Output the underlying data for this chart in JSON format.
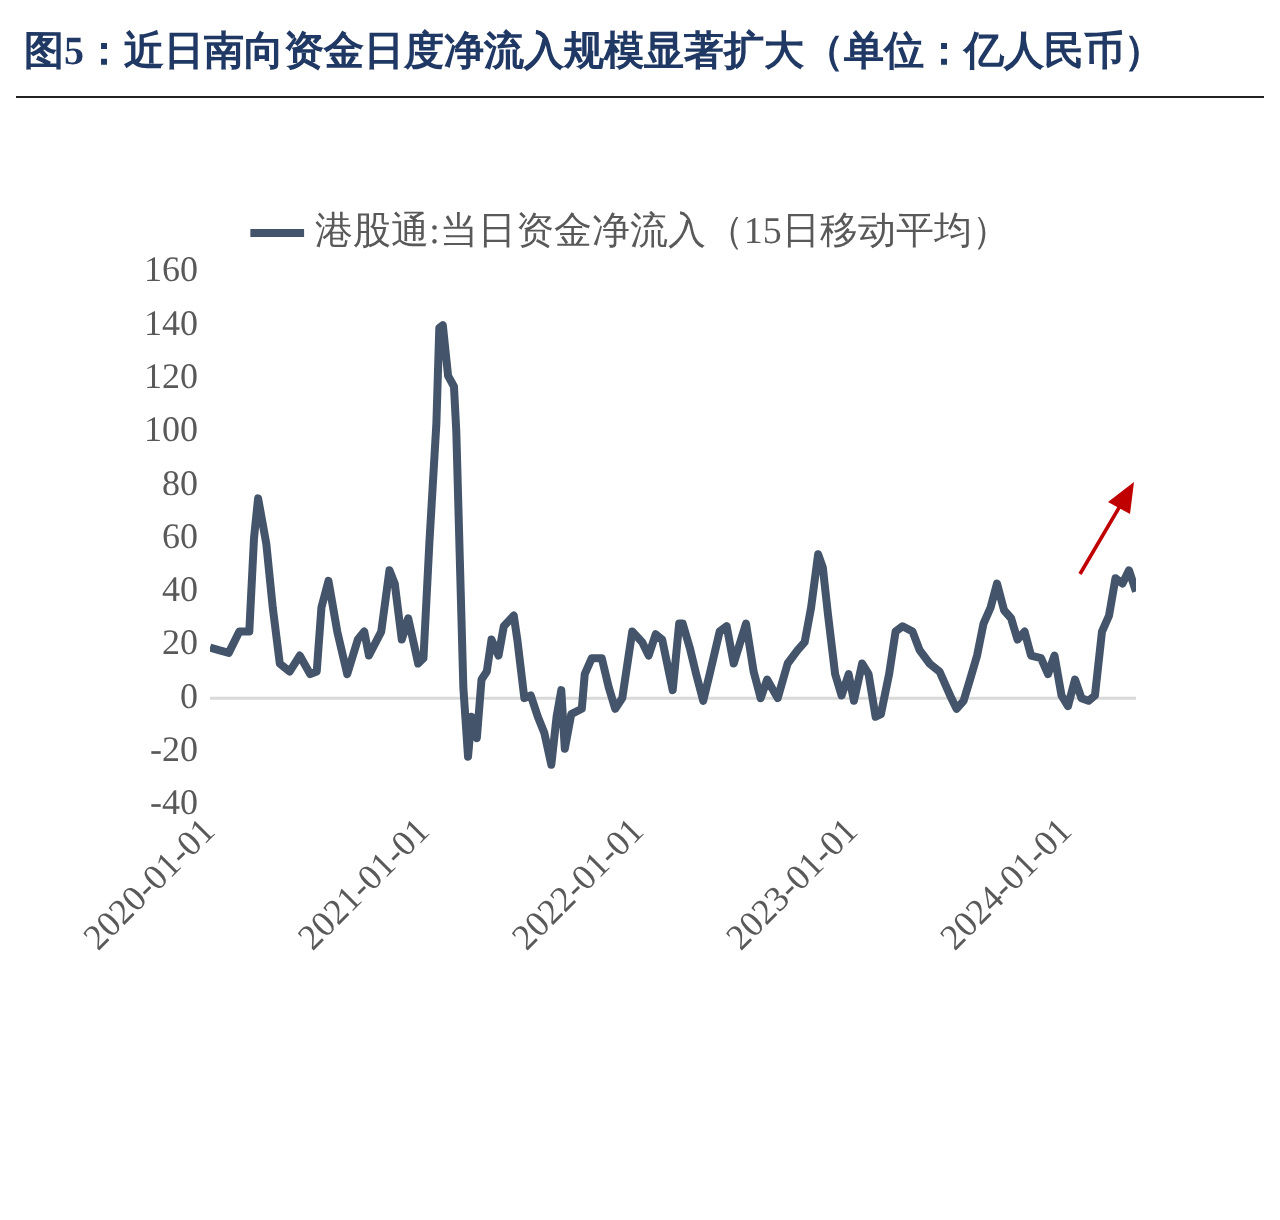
{
  "chart_data": {
    "type": "line",
    "title": "图5：近日南向资金日度净流入规模显著扩大（单位：亿人民币）",
    "x": [
      "2020-01-01",
      "2020-01-16",
      "2020-02-02",
      "2020-02-20",
      "2020-03-08",
      "2020-03-16",
      "2020-03-23",
      "2020-04-06",
      "2020-04-17",
      "2020-04-29",
      "2020-05-16",
      "2020-06-02",
      "2020-06-20",
      "2020-07-01",
      "2020-07-09",
      "2020-07-21",
      "2020-08-05",
      "2020-08-22",
      "2020-09-09",
      "2020-09-20",
      "2020-09-28",
      "2020-10-19",
      "2020-11-02",
      "2020-11-11",
      "2020-11-23",
      "2020-12-04",
      "2020-12-21",
      "2020-12-30",
      "2021-01-09",
      "2021-01-21",
      "2021-01-26",
      "2021-02-01",
      "2021-02-10",
      "2021-02-20",
      "2021-02-24",
      "2021-03-02",
      "2021-03-08",
      "2021-03-16",
      "2021-03-22",
      "2021-03-31",
      "2021-04-08",
      "2021-04-17",
      "2021-04-25",
      "2021-05-07",
      "2021-05-16",
      "2021-06-02",
      "2021-06-08",
      "2021-06-20",
      "2021-07-01",
      "2021-07-13",
      "2021-07-24",
      "2021-08-05",
      "2021-08-14",
      "2021-08-22",
      "2021-08-28",
      "2021-09-08",
      "2021-09-26",
      "2021-10-01",
      "2021-10-13",
      "2021-10-30",
      "2021-11-11",
      "2021-11-22",
      "2021-12-04",
      "2021-12-21",
      "2022-01-07",
      "2022-01-18",
      "2022-01-30",
      "2022-02-10",
      "2022-02-28",
      "2022-03-11",
      "2022-03-17",
      "2022-03-29",
      "2022-04-09",
      "2022-04-21",
      "2022-05-02",
      "2022-05-19",
      "2022-05-31",
      "2022-06-12",
      "2022-07-03",
      "2022-07-16",
      "2022-07-28",
      "2022-08-08",
      "2022-08-26",
      "2022-09-12",
      "2022-09-29",
      "2022-10-11",
      "2022-10-22",
      "2022-11-03",
      "2022-11-11",
      "2022-11-20",
      "2022-12-02",
      "2022-12-13",
      "2022-12-25",
      "2023-01-03",
      "2023-01-17",
      "2023-01-28",
      "2023-02-09",
      "2023-02-18",
      "2023-03-04",
      "2023-03-15",
      "2023-03-27",
      "2023-04-13",
      "2023-04-25",
      "2023-05-12",
      "2023-05-29",
      "2023-06-16",
      "2023-06-27",
      "2023-07-09",
      "2023-07-20",
      "2023-08-01",
      "2023-08-12",
      "2023-08-24",
      "2023-09-04",
      "2023-09-16",
      "2023-09-28",
      "2023-10-09",
      "2023-10-21",
      "2023-11-01",
      "2023-11-18",
      "2023-11-30",
      "2023-12-11",
      "2023-12-23",
      "2024-01-03",
      "2024-01-15",
      "2024-01-26",
      "2024-02-07",
      "2024-02-18",
      "2024-03-01",
      "2024-03-13",
      "2024-03-24",
      "2024-04-05",
      "2024-04-16",
      "2024-04-28"
    ],
    "series": [
      {
        "name": "港股通:当日资金净流入（15日移动平均）",
        "color": "#44546a",
        "values": [
          19,
          18,
          17,
          25,
          25,
          60,
          75,
          58,
          34,
          13,
          10,
          16,
          9,
          10,
          34,
          44,
          25,
          9,
          22,
          25,
          16,
          25,
          48,
          43,
          22,
          30,
          13,
          15,
          58,
          103,
          139,
          140,
          121,
          117,
          100,
          52,
          4,
          -22,
          -7,
          -15,
          7,
          10,
          22,
          16,
          27,
          31,
          22,
          0,
          1,
          -7,
          -13,
          -25,
          -7,
          3,
          -19,
          -6,
          -4,
          9,
          15,
          15,
          4,
          -4,
          0,
          25,
          21,
          16,
          24,
          22,
          3,
          28,
          28,
          19,
          9,
          -1,
          9,
          25,
          27,
          13,
          28,
          10,
          0,
          7,
          0,
          13,
          18,
          21,
          34,
          54,
          49,
          31,
          9,
          1,
          9,
          -1,
          13,
          9,
          -7,
          -6,
          9,
          25,
          27,
          25,
          18,
          13,
          10,
          1,
          -4,
          -1,
          7,
          16,
          28,
          34,
          43,
          33,
          30,
          22,
          25,
          16,
          15,
          9,
          16,
          1,
          -3,
          7,
          0,
          -1,
          1,
          25,
          31,
          45,
          43,
          48,
          40
        ]
      }
    ],
    "xlim": [
      "2020-01-01",
      "2024-04-28"
    ],
    "xticks": [
      "2020-01-01",
      "2021-01-01",
      "2022-01-01",
      "2023-01-01",
      "2024-01-01"
    ],
    "ylim": [
      -40,
      160
    ],
    "yticks": [
      -40,
      -20,
      0,
      20,
      40,
      60,
      80,
      100,
      120,
      140,
      160
    ],
    "grid": false,
    "ref_lines": [
      {
        "axis": "y",
        "value": 0,
        "color": "#d9d9d9"
      }
    ],
    "legend": "top",
    "marker": "none",
    "line_style": "solid"
  }
}
